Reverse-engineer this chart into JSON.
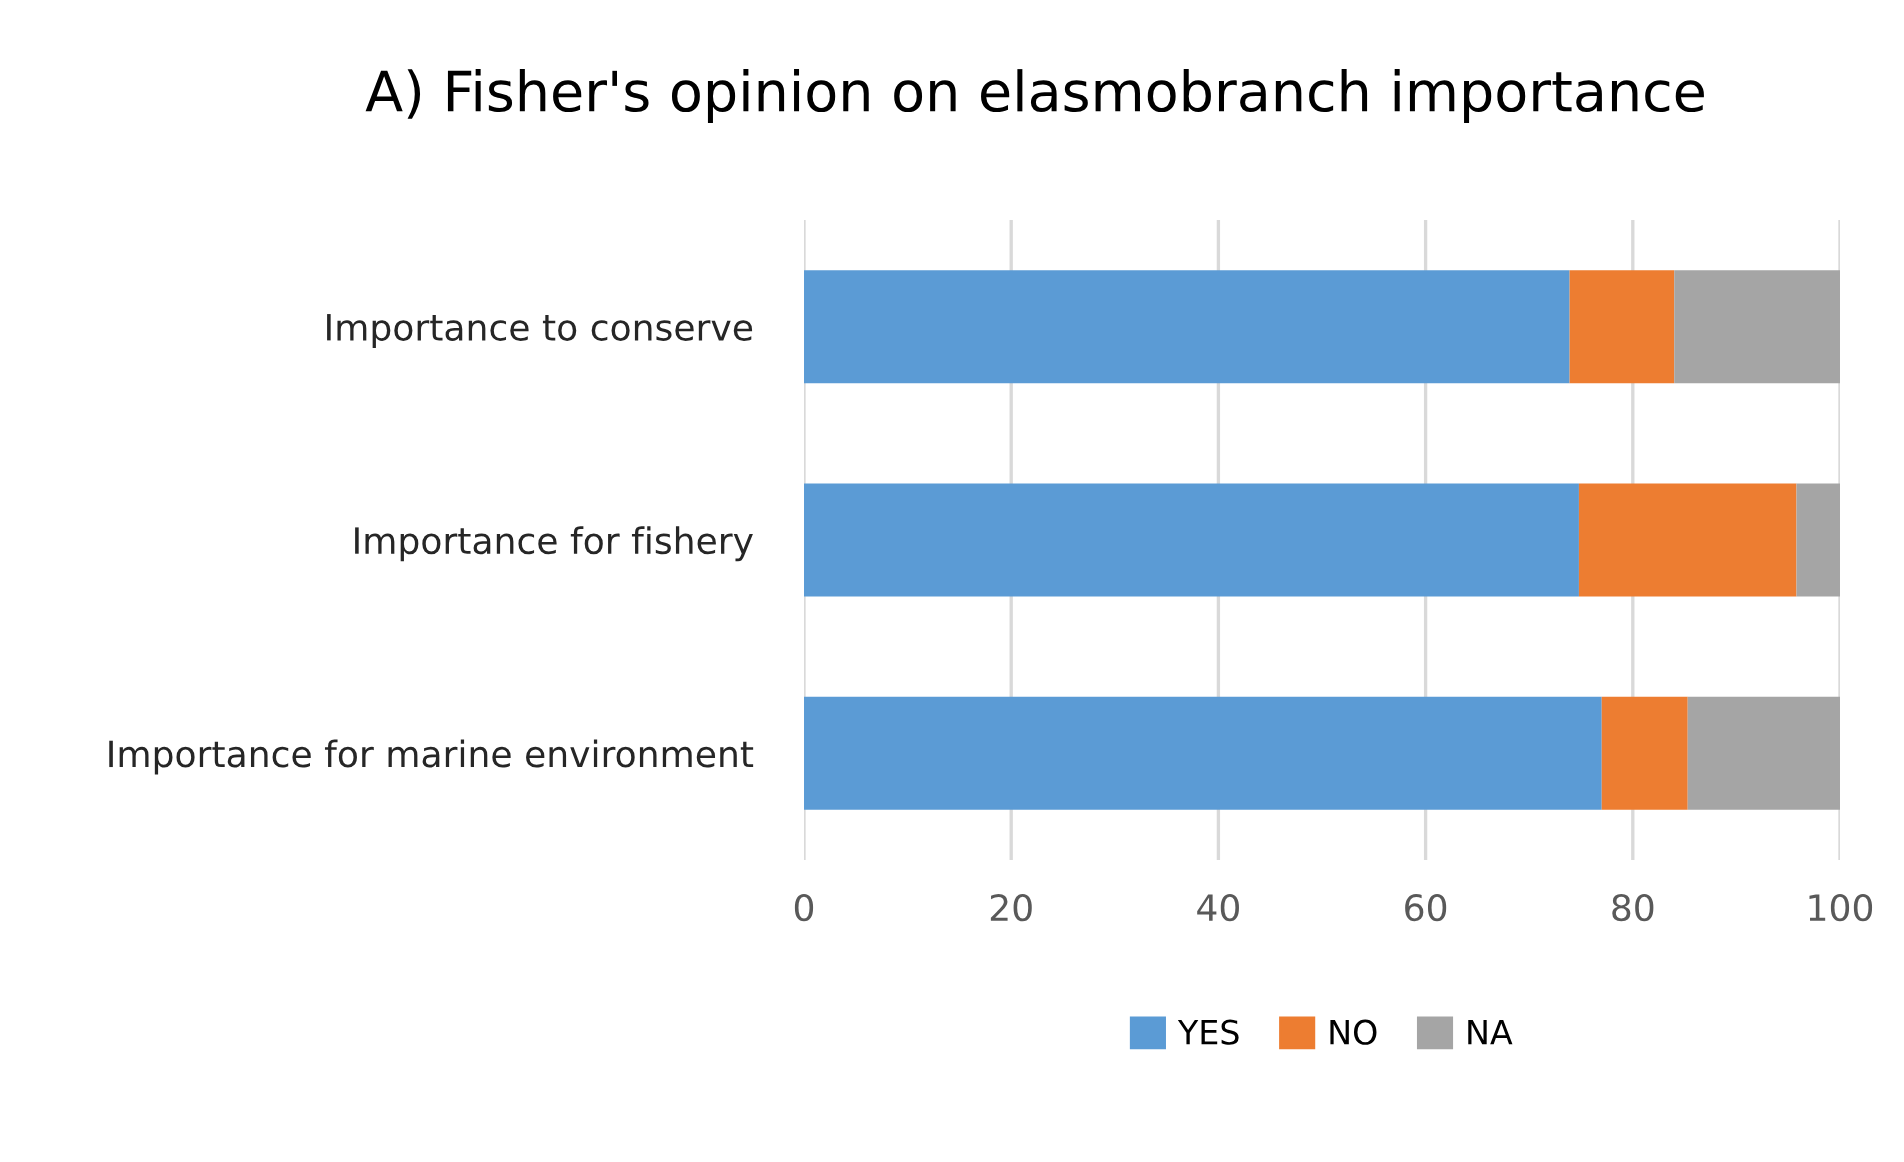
{
  "chart_data": {
    "type": "bar",
    "orientation": "horizontal",
    "stacked": true,
    "title": "A) Fisher's opinion on elasmobranch importance",
    "categories": [
      "Importance to conserve",
      "Importance for fishery",
      "Importance for marine environment"
    ],
    "series": [
      {
        "name": "YES",
        "color": "#5b9bd5",
        "values": [
          73.9,
          74.8,
          77.0
        ]
      },
      {
        "name": "NO",
        "color": "#ed7d31",
        "values": [
          10.1,
          21.0,
          8.3
        ]
      },
      {
        "name": "NA",
        "color": "#a5a5a5",
        "values": [
          16.0,
          4.2,
          14.7
        ]
      }
    ],
    "xlim": [
      0,
      100
    ],
    "xticks": [
      0,
      20,
      40,
      60,
      80,
      100
    ],
    "grid": "x",
    "legend": "bottom"
  }
}
